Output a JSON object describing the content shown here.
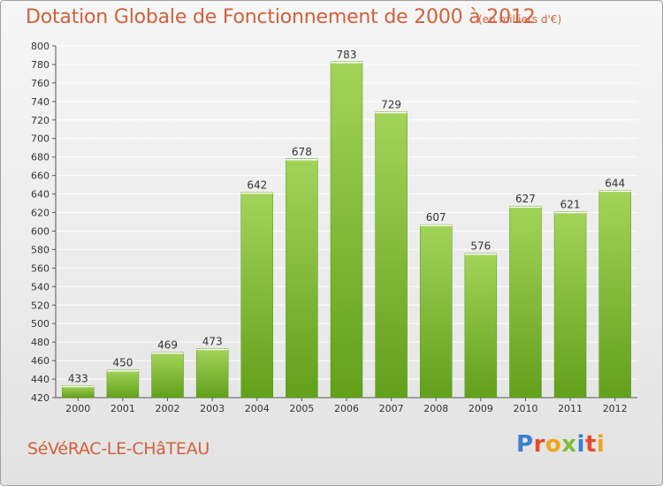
{
  "header": {
    "title": "Dotation Globale de Fonctionnement de 2000 à 2012",
    "subtitle": "(en milliers d'€)"
  },
  "footer": {
    "commune": "SéVéRAC-LE-CHâTEAU",
    "logo_text": "Proxiti",
    "logo_colors": [
      "#3a7fd0",
      "#e34b2f",
      "#f0a51d",
      "#7bbf3a",
      "#3a7fd0",
      "#e34b2f",
      "#f0a51d"
    ]
  },
  "colors": {
    "bar_top": "#a3d45a",
    "bar_bottom": "#62a01a",
    "title": "#d2603a",
    "grid": "#ffffff"
  },
  "chart_data": {
    "type": "bar",
    "title": "Dotation Globale de Fonctionnement de 2000 à 2012",
    "subtitle": "(en milliers d'€)",
    "xlabel": "",
    "ylabel": "",
    "categories": [
      "2000",
      "2001",
      "2002",
      "2003",
      "2004",
      "2005",
      "2006",
      "2007",
      "2008",
      "2009",
      "2010",
      "2011",
      "2012"
    ],
    "values": [
      433,
      450,
      469,
      473,
      642,
      678,
      783,
      729,
      607,
      576,
      627,
      621,
      644
    ],
    "ylim": [
      420,
      800
    ],
    "yticks": [
      420,
      440,
      460,
      480,
      500,
      520,
      540,
      560,
      580,
      600,
      620,
      640,
      660,
      680,
      700,
      720,
      740,
      760,
      780,
      800
    ],
    "grid": true,
    "legend": "none"
  }
}
